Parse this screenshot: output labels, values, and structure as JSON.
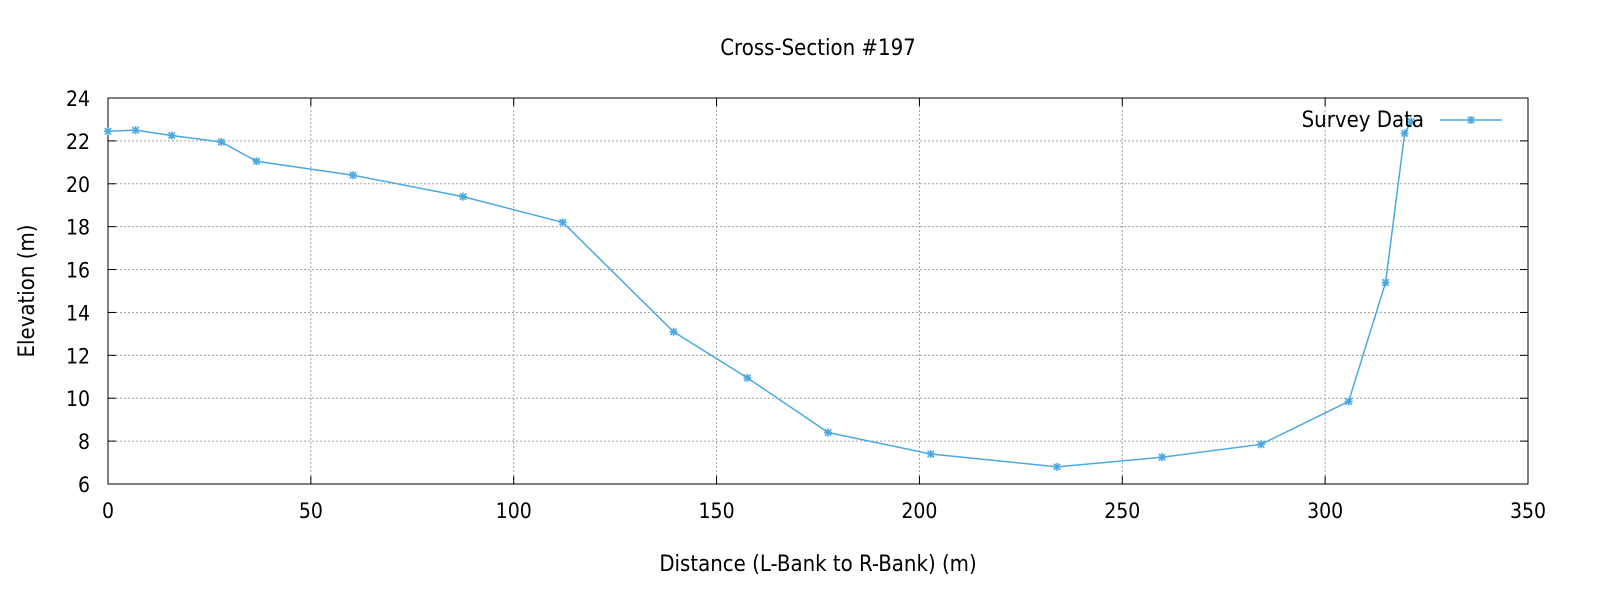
{
  "chart_data": {
    "type": "line",
    "title": "Cross-Section #197",
    "xlabel": "Distance (L-Bank to R-Bank) (m)",
    "ylabel": "Elevation (m)",
    "xlim": [
      0,
      350
    ],
    "ylim": [
      6,
      24
    ],
    "xticks": [
      0,
      50,
      100,
      150,
      200,
      250,
      300,
      350
    ],
    "yticks": [
      6,
      8,
      10,
      12,
      14,
      16,
      18,
      20,
      22,
      24
    ],
    "grid": true,
    "legend_position": "top-right",
    "series": [
      {
        "name": "Survey Data",
        "color": "#4aa9e0",
        "marker": "star",
        "x": [
          0,
          6.8,
          15.7,
          27.9,
          36.6,
          60.4,
          87.5,
          112.1,
          139.4,
          157.6,
          177.5,
          202.8,
          233.9,
          259.8,
          284.2,
          305.8,
          314.9,
          319.6,
          321.2
        ],
        "y": [
          22.45,
          22.5,
          22.25,
          21.95,
          21.05,
          20.4,
          19.4,
          18.2,
          13.1,
          10.95,
          8.4,
          7.4,
          6.8,
          7.25,
          7.85,
          9.85,
          15.4,
          22.35,
          22.9
        ]
      }
    ]
  }
}
